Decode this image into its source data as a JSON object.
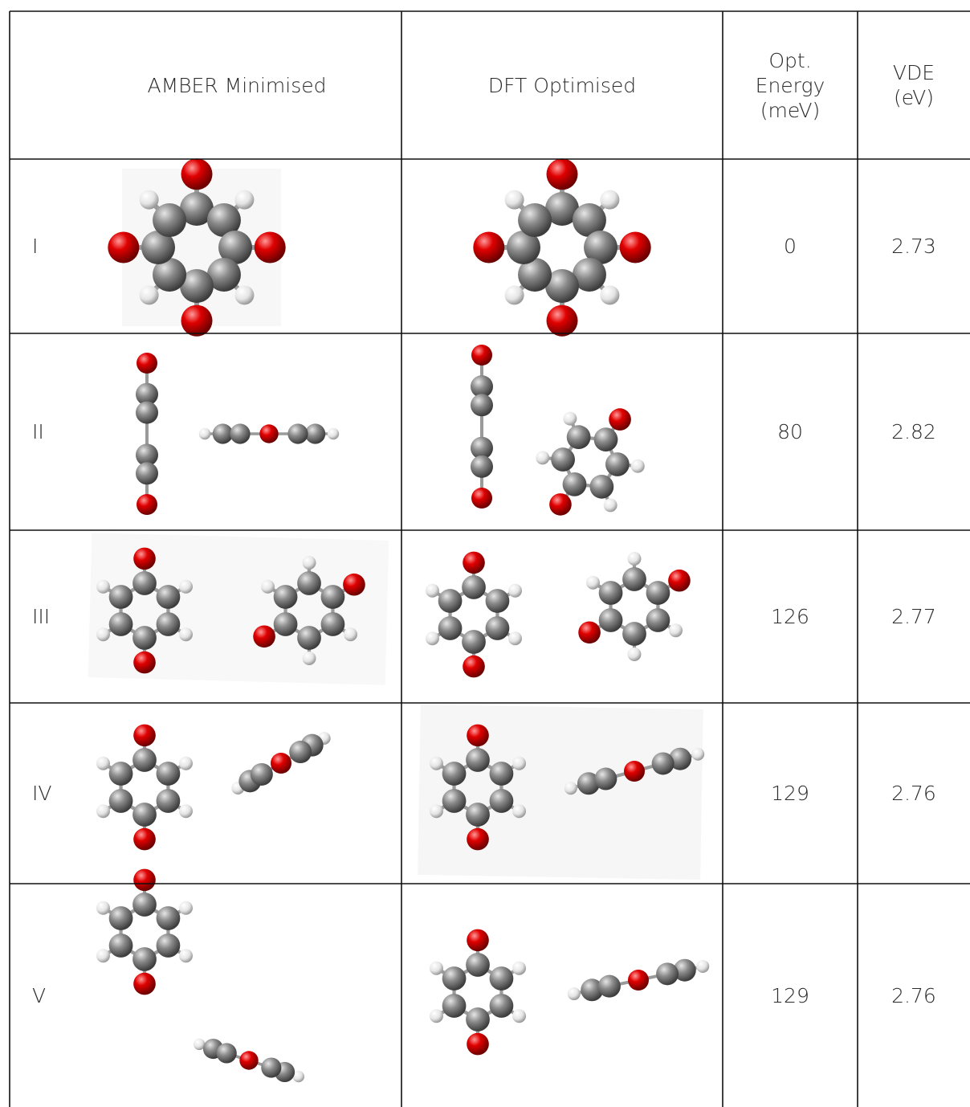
{
  "table": {
    "header": [
      "AMBER Minimised",
      "DFT Optimised",
      "Opt. Energy (meV)",
      "VDE (eV)"
    ],
    "rows": [
      {
        "label": "I",
        "energy": 0,
        "vde": 2.73
      },
      {
        "label": "II",
        "energy": 80,
        "vde": 2.82
      },
      {
        "label": "III",
        "energy": 126,
        "vde": 2.77
      },
      {
        "label": "IV",
        "energy": 129,
        "vde": 2.76
      },
      {
        "label": "V",
        "energy": 129,
        "vde": 2.76
      }
    ]
  }
}
